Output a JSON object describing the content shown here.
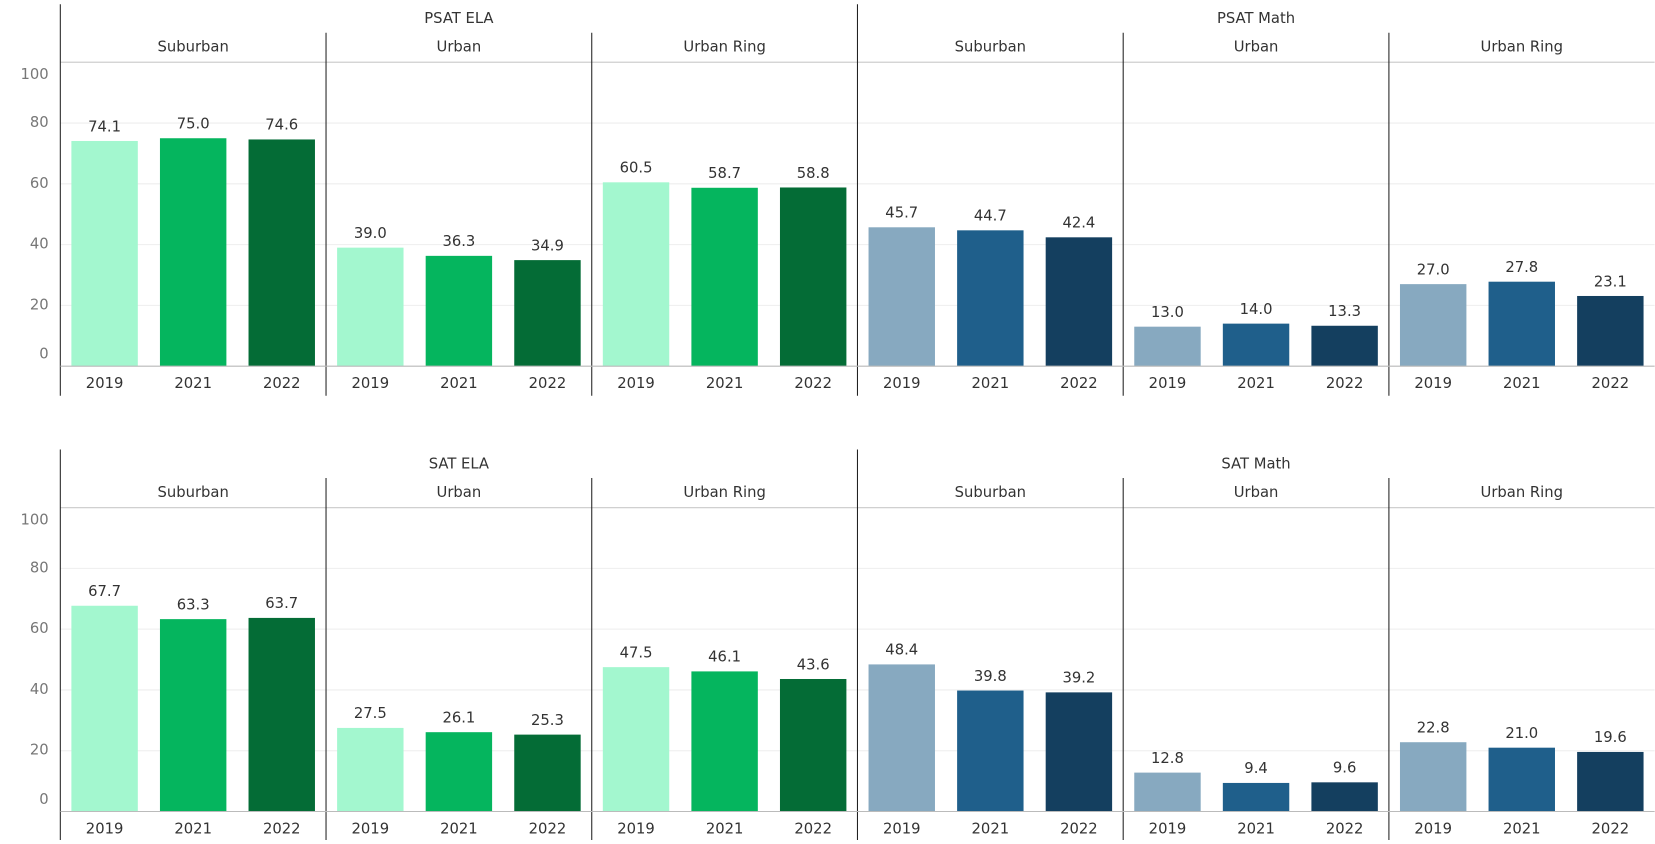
{
  "chart_data": [
    {
      "type": "bar",
      "categories": [
        "2019",
        "2021",
        "2022"
      ],
      "ylim": [
        0,
        100
      ],
      "yticks": [
        0,
        20,
        40,
        60,
        80,
        100
      ],
      "grid": true,
      "groups": [
        {
          "title": "PSAT ELA",
          "colors": [
            "#a3f7cf",
            "#05b55e",
            "#046c36"
          ],
          "panels": [
            {
              "name": "Suburban",
              "values": [
                74.1,
                75.0,
                74.6
              ],
              "value_labels": [
                "74.1",
                "75.0",
                "74.6"
              ]
            },
            {
              "name": "Urban",
              "values": [
                39.0,
                36.3,
                34.9
              ],
              "value_labels": [
                "39.0",
                "36.3",
                "34.9"
              ]
            },
            {
              "name": "Urban Ring",
              "values": [
                60.5,
                58.7,
                58.8
              ],
              "value_labels": [
                "60.5",
                "58.7",
                "58.8"
              ]
            }
          ]
        },
        {
          "title": "PSAT Math",
          "colors": [
            "#87a9c0",
            "#1f5f8b",
            "#143f5f"
          ],
          "panels": [
            {
              "name": "Suburban",
              "values": [
                45.7,
                44.7,
                42.4
              ],
              "value_labels": [
                "45.7",
                "44.7",
                "42.4"
              ]
            },
            {
              "name": "Urban",
              "values": [
                13.0,
                14.0,
                13.3
              ],
              "value_labels": [
                "13.0",
                "14.0",
                "13.3"
              ]
            },
            {
              "name": "Urban Ring",
              "values": [
                27.0,
                27.8,
                23.1
              ],
              "value_labels": [
                "27.0",
                "27.8",
                "23.1"
              ]
            }
          ]
        }
      ]
    },
    {
      "type": "bar",
      "categories": [
        "2019",
        "2021",
        "2022"
      ],
      "ylim": [
        0,
        100
      ],
      "yticks": [
        0,
        20,
        40,
        60,
        80,
        100
      ],
      "grid": true,
      "groups": [
        {
          "title": "SAT ELA",
          "colors": [
            "#a3f7cf",
            "#05b55e",
            "#046c36"
          ],
          "panels": [
            {
              "name": "Suburban",
              "values": [
                67.7,
                63.3,
                63.7
              ],
              "value_labels": [
                "67.7",
                "63.3",
                "63.7"
              ]
            },
            {
              "name": "Urban",
              "values": [
                27.5,
                26.1,
                25.3
              ],
              "value_labels": [
                "27.5",
                "26.1",
                "25.3"
              ]
            },
            {
              "name": "Urban Ring",
              "values": [
                47.5,
                46.1,
                43.6
              ],
              "value_labels": [
                "47.5",
                "46.1",
                "43.6"
              ]
            }
          ]
        },
        {
          "title": "SAT Math",
          "colors": [
            "#87a9c0",
            "#1f5f8b",
            "#143f5f"
          ],
          "panels": [
            {
              "name": "Suburban",
              "values": [
                48.4,
                39.8,
                39.2
              ],
              "value_labels": [
                "48.4",
                "39.8",
                "39.2"
              ]
            },
            {
              "name": "Urban",
              "values": [
                12.8,
                9.4,
                9.6
              ],
              "value_labels": [
                "12.8",
                "9.4",
                "9.6"
              ]
            },
            {
              "name": "Urban Ring",
              "values": [
                22.8,
                21.0,
                19.6
              ],
              "value_labels": [
                "22.8",
                "21.0",
                "19.6"
              ]
            }
          ]
        }
      ]
    }
  ]
}
